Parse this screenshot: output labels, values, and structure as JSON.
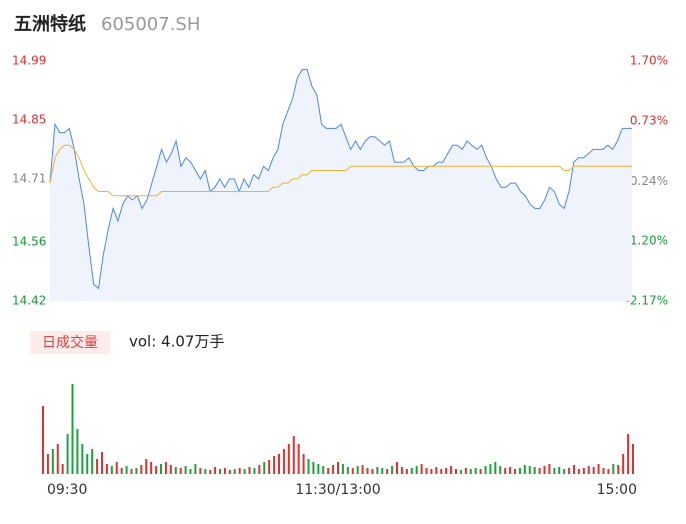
{
  "header": {
    "title": "五洲特纸",
    "code": "605007.SH"
  },
  "chart_data": [
    {
      "type": "line",
      "x": [
        0,
        2,
        4,
        6,
        8,
        10,
        12,
        14,
        16,
        18,
        20,
        22,
        24,
        26,
        28,
        30,
        32,
        34,
        36,
        38,
        40,
        42,
        44,
        46,
        48,
        50,
        52,
        54,
        56,
        58,
        60,
        62,
        64,
        66,
        68,
        70,
        72,
        74,
        76,
        78,
        80,
        82,
        84,
        86,
        88,
        90,
        92,
        94,
        96,
        98,
        100,
        102,
        104,
        106,
        108,
        110,
        112,
        114,
        116,
        118,
        120,
        122,
        124,
        126,
        128,
        130,
        132,
        134,
        136,
        138,
        140,
        142,
        144,
        146,
        148,
        150,
        152,
        154,
        156,
        158,
        160,
        162,
        164,
        166,
        168,
        170,
        172,
        174,
        176,
        178,
        180,
        182,
        184,
        186,
        188,
        190,
        192,
        194,
        196,
        198,
        200,
        202,
        204,
        206,
        208,
        210,
        212,
        214,
        216,
        218,
        220,
        222,
        224,
        226,
        228,
        230,
        232,
        234,
        236,
        238,
        240
      ],
      "series": [
        {
          "color": "#4f86e8",
          "values": [
            14.7,
            14.84,
            14.82,
            14.82,
            14.83,
            14.78,
            14.71,
            14.65,
            14.55,
            14.46,
            14.45,
            14.53,
            14.59,
            14.64,
            14.61,
            14.65,
            14.67,
            14.66,
            14.67,
            14.64,
            14.66,
            14.7,
            14.74,
            14.78,
            14.75,
            14.77,
            14.8,
            14.74,
            14.76,
            14.75,
            14.73,
            14.71,
            14.73,
            14.68,
            14.69,
            14.71,
            14.69,
            14.71,
            14.71,
            14.68,
            14.71,
            14.69,
            14.72,
            14.71,
            14.74,
            14.73,
            14.76,
            14.78,
            14.84,
            14.87,
            14.9,
            14.95,
            14.97,
            14.97,
            14.93,
            14.91,
            14.84,
            14.83,
            14.83,
            14.83,
            14.84,
            14.81,
            14.78,
            14.8,
            14.78,
            14.8,
            14.81,
            14.81,
            14.8,
            14.79,
            14.8,
            14.75,
            14.75,
            14.75,
            14.76,
            14.74,
            14.73,
            14.73,
            14.74,
            14.74,
            14.75,
            14.75,
            14.77,
            14.79,
            14.79,
            14.78,
            14.8,
            14.79,
            14.78,
            14.79,
            14.76,
            14.74,
            14.71,
            14.69,
            14.69,
            14.7,
            14.7,
            14.68,
            14.67,
            14.65,
            14.64,
            14.64,
            14.66,
            14.69,
            14.68,
            14.65,
            14.64,
            14.68,
            14.75,
            14.76,
            14.76,
            14.77,
            14.78,
            14.78,
            14.78,
            14.79,
            14.78,
            14.8,
            14.83,
            14.83,
            14.83
          ]
        },
        {
          "color": "#f2b233",
          "values": [
            14.7,
            14.76,
            14.78,
            14.79,
            14.79,
            14.78,
            14.76,
            14.73,
            14.71,
            14.69,
            14.68,
            14.68,
            14.68,
            14.67,
            14.67,
            14.67,
            14.67,
            14.67,
            14.67,
            14.67,
            14.67,
            14.67,
            14.67,
            14.68,
            14.68,
            14.68,
            14.68,
            14.68,
            14.68,
            14.68,
            14.68,
            14.68,
            14.68,
            14.68,
            14.68,
            14.68,
            14.68,
            14.68,
            14.68,
            14.68,
            14.68,
            14.68,
            14.68,
            14.68,
            14.68,
            14.68,
            14.69,
            14.69,
            14.7,
            14.7,
            14.71,
            14.71,
            14.72,
            14.72,
            14.73,
            14.73,
            14.73,
            14.73,
            14.73,
            14.73,
            14.73,
            14.73,
            14.74,
            14.74,
            14.74,
            14.74,
            14.74,
            14.74,
            14.74,
            14.74,
            14.74,
            14.74,
            14.74,
            14.74,
            14.74,
            14.74,
            14.74,
            14.74,
            14.74,
            14.74,
            14.74,
            14.74,
            14.74,
            14.74,
            14.74,
            14.74,
            14.74,
            14.74,
            14.74,
            14.74,
            14.74,
            14.74,
            14.74,
            14.74,
            14.74,
            14.74,
            14.74,
            14.74,
            14.74,
            14.74,
            14.74,
            14.74,
            14.74,
            14.74,
            14.74,
            14.74,
            14.73,
            14.73,
            14.74,
            14.74,
            14.74,
            14.74,
            14.74,
            14.74,
            14.74,
            14.74,
            14.74,
            14.74,
            14.74,
            14.74,
            14.74
          ]
        }
      ],
      "xlim": [
        0,
        240
      ],
      "xticks": [
        {
          "value": 0,
          "label": "09:30"
        },
        {
          "value": 120,
          "label": "11:30/13:00"
        },
        {
          "value": 240,
          "label": "15:00"
        }
      ],
      "ylim": [
        14.42,
        14.99
      ],
      "yticks": [
        14.99,
        14.85,
        14.71,
        14.56,
        14.42
      ],
      "y2lim": [
        -2.17,
        1.7
      ],
      "y2ticks": [
        {
          "value": 1.7,
          "label": "1.70%"
        },
        {
          "value": 0.73,
          "label": "0.73%"
        },
        {
          "value": -0.24,
          "label": "-0.24%"
        },
        {
          "value": -1.2,
          "label": "-1.20%"
        },
        {
          "value": -2.17,
          "label": "-2.17%"
        }
      ],
      "tick_colors": [
        "#e03030",
        "#e03030",
        "#888888",
        "#1a9a3a",
        "#1a9a3a"
      ]
    },
    {
      "type": "bar",
      "badge": "日成交量",
      "total": "vol: 4.07万手",
      "x": [
        0,
        2,
        4,
        6,
        8,
        10,
        12,
        14,
        16,
        18,
        20,
        22,
        24,
        26,
        28,
        30,
        32,
        34,
        36,
        38,
        40,
        42,
        44,
        46,
        48,
        50,
        52,
        54,
        56,
        58,
        60,
        62,
        64,
        66,
        68,
        70,
        72,
        74,
        76,
        78,
        80,
        82,
        84,
        86,
        88,
        90,
        92,
        94,
        96,
        98,
        100,
        102,
        104,
        106,
        108,
        110,
        112,
        114,
        116,
        118,
        120,
        122,
        124,
        126,
        128,
        130,
        132,
        134,
        136,
        138,
        140,
        142,
        144,
        146,
        148,
        150,
        152,
        154,
        156,
        158,
        160,
        162,
        164,
        166,
        168,
        170,
        172,
        174,
        176,
        178,
        180,
        182,
        184,
        186,
        188,
        190,
        192,
        194,
        196,
        198,
        200,
        202,
        204,
        206,
        208,
        210,
        212,
        214,
        216,
        218,
        220,
        222,
        224,
        226,
        228,
        230,
        232,
        234,
        236,
        238,
        240
      ],
      "values": [
        1020,
        300,
        375,
        450,
        150,
        600,
        1350,
        675,
        450,
        300,
        375,
        225,
        330,
        150,
        120,
        180,
        90,
        120,
        75,
        90,
        135,
        225,
        180,
        120,
        150,
        180,
        135,
        105,
        90,
        120,
        75,
        150,
        90,
        75,
        60,
        105,
        75,
        90,
        60,
        75,
        90,
        75,
        105,
        90,
        135,
        180,
        210,
        270,
        300,
        375,
        450,
        570,
        450,
        300,
        225,
        180,
        150,
        120,
        90,
        135,
        180,
        150,
        105,
        90,
        120,
        135,
        90,
        75,
        105,
        90,
        75,
        120,
        180,
        105,
        75,
        90,
        120,
        150,
        90,
        75,
        105,
        75,
        90,
        120,
        75,
        60,
        90,
        75,
        90,
        75,
        120,
        150,
        180,
        120,
        90,
        105,
        75,
        90,
        135,
        120,
        105,
        90,
        120,
        150,
        90,
        105,
        75,
        90,
        135,
        75,
        90,
        120,
        105,
        150,
        90,
        75,
        150,
        135,
        300,
        600,
        450
      ],
      "ylim": [
        0,
        1410
      ],
      "up_color": "#e03030",
      "down_color": "#1aa33a"
    }
  ]
}
